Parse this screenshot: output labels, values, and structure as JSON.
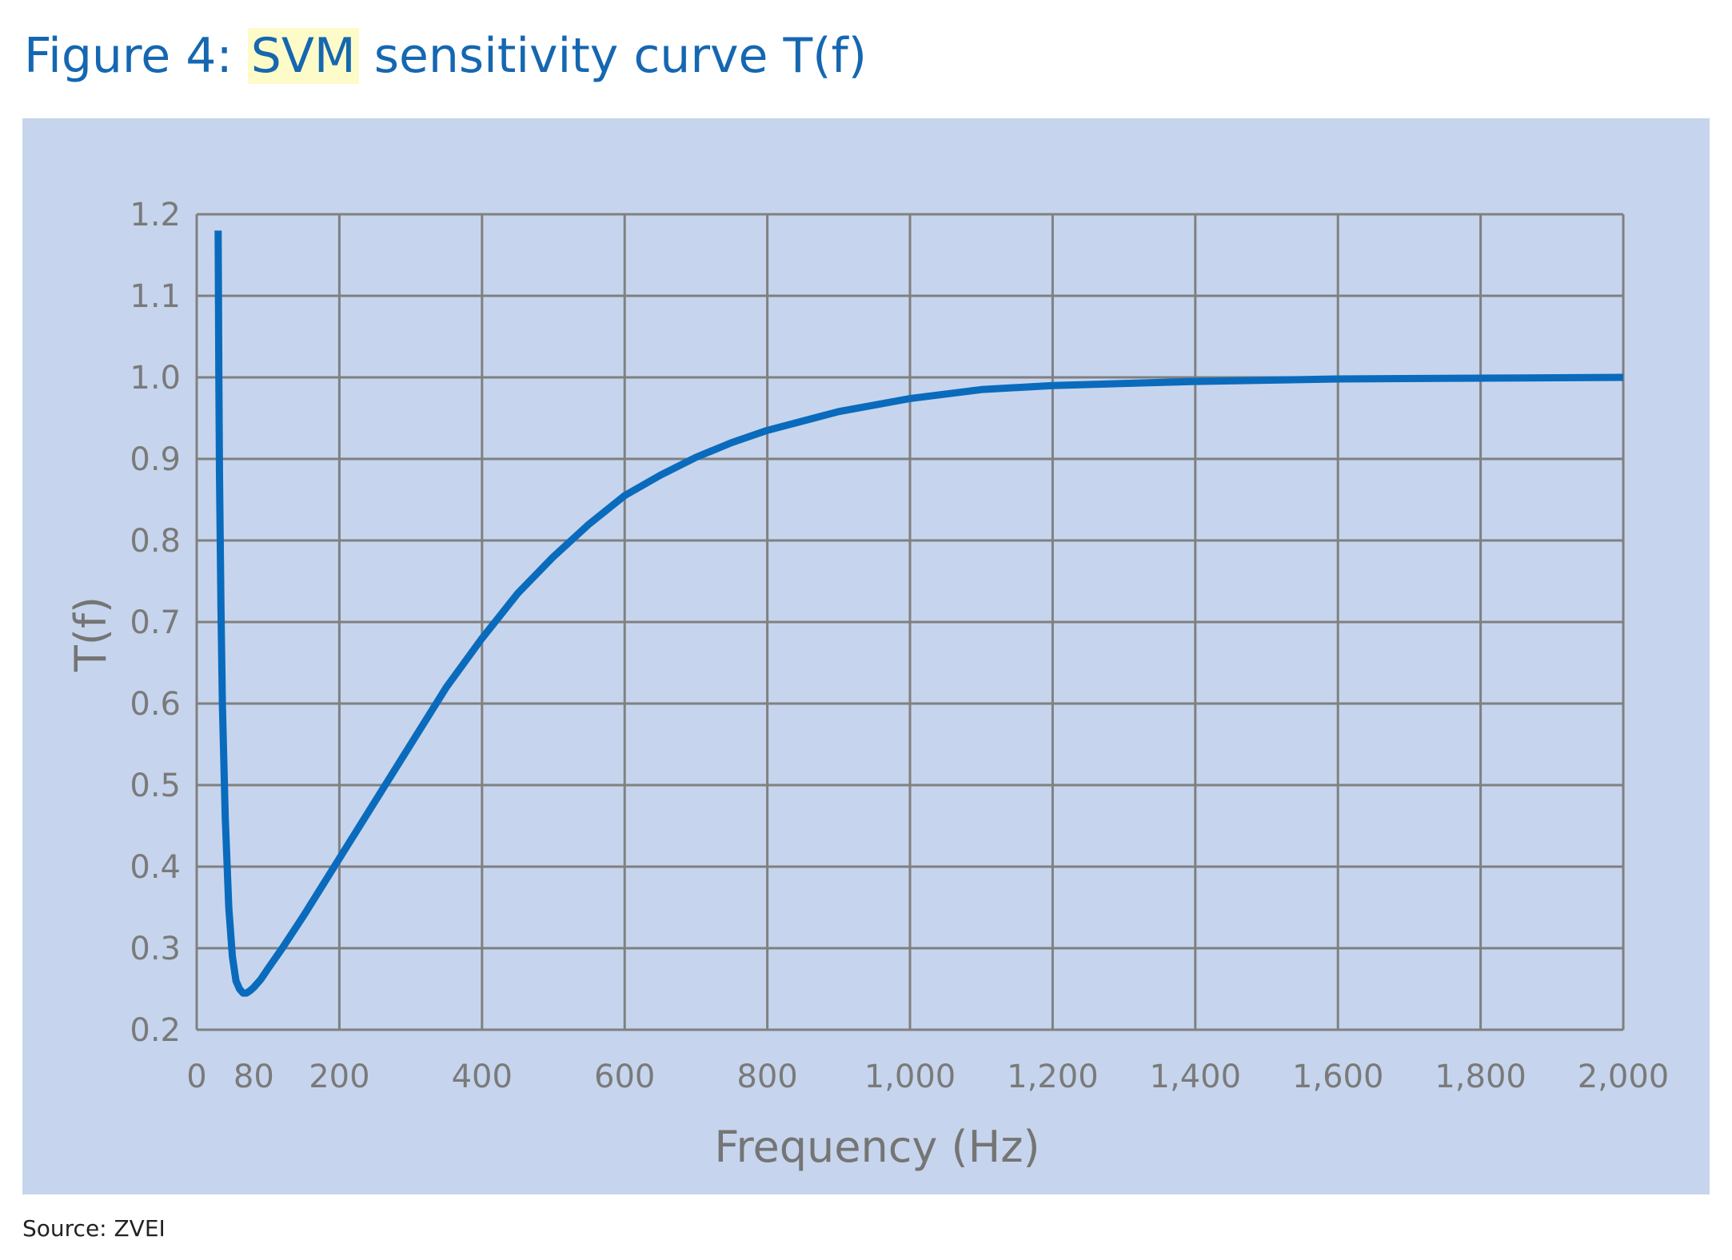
{
  "figure": {
    "title_prefix": "Figure 4: ",
    "title_highlight": "SVM",
    "title_suffix": " sensitivity curve T(f)",
    "source": "Source: ZVEI"
  },
  "colors": {
    "title": "#1567b0",
    "highlight": "#fdfbc8",
    "panel_background": "#c6d5ed",
    "grid": "#808080",
    "curve": "#0a6bbd",
    "tick_text": "#7a7a7a"
  },
  "chart_data": {
    "type": "line",
    "title": "",
    "xlabel": "Frequency (Hz)",
    "ylabel": "T(f)",
    "xlim": [
      0,
      2000
    ],
    "ylim": [
      0.2,
      1.2
    ],
    "x_ticks": [
      0,
      80,
      200,
      400,
      600,
      800,
      1000,
      1200,
      1400,
      1600,
      1800,
      2000
    ],
    "x_tick_labels": [
      "0",
      "80",
      "200",
      "400",
      "600",
      "800",
      "1,000",
      "1,200",
      "1,400",
      "1,600",
      "1,800",
      "2,000"
    ],
    "x_grid": [
      0,
      200,
      400,
      600,
      800,
      1000,
      1200,
      1400,
      1600,
      1800,
      2000
    ],
    "y_ticks": [
      0.2,
      0.3,
      0.4,
      0.5,
      0.6,
      0.7,
      0.8,
      0.9,
      1.0,
      1.1,
      1.2
    ],
    "y_tick_labels": [
      "0.2",
      "0.3",
      "0.4",
      "0.5",
      "0.6",
      "0.7",
      "0.8",
      "0.9",
      "1.0",
      "1.1",
      "1.2"
    ],
    "grid": true,
    "legend": false,
    "series": [
      {
        "x": [
          30,
          31,
          32,
          34,
          36,
          40,
          45,
          50,
          55,
          60,
          65,
          70,
          75,
          80,
          90,
          100,
          120,
          150,
          200,
          250,
          300,
          350,
          400,
          450,
          500,
          550,
          600,
          650,
          700,
          750,
          800,
          900,
          1000,
          1100,
          1200,
          1400,
          1600,
          1800,
          2000
        ],
        "y": [
          1.18,
          1.0,
          0.88,
          0.72,
          0.6,
          0.46,
          0.35,
          0.29,
          0.26,
          0.25,
          0.245,
          0.245,
          0.248,
          0.252,
          0.262,
          0.275,
          0.3,
          0.34,
          0.41,
          0.48,
          0.55,
          0.62,
          0.68,
          0.735,
          0.78,
          0.82,
          0.855,
          0.88,
          0.902,
          0.92,
          0.935,
          0.958,
          0.974,
          0.985,
          0.99,
          0.995,
          0.998,
          0.999,
          1.0
        ]
      }
    ]
  }
}
